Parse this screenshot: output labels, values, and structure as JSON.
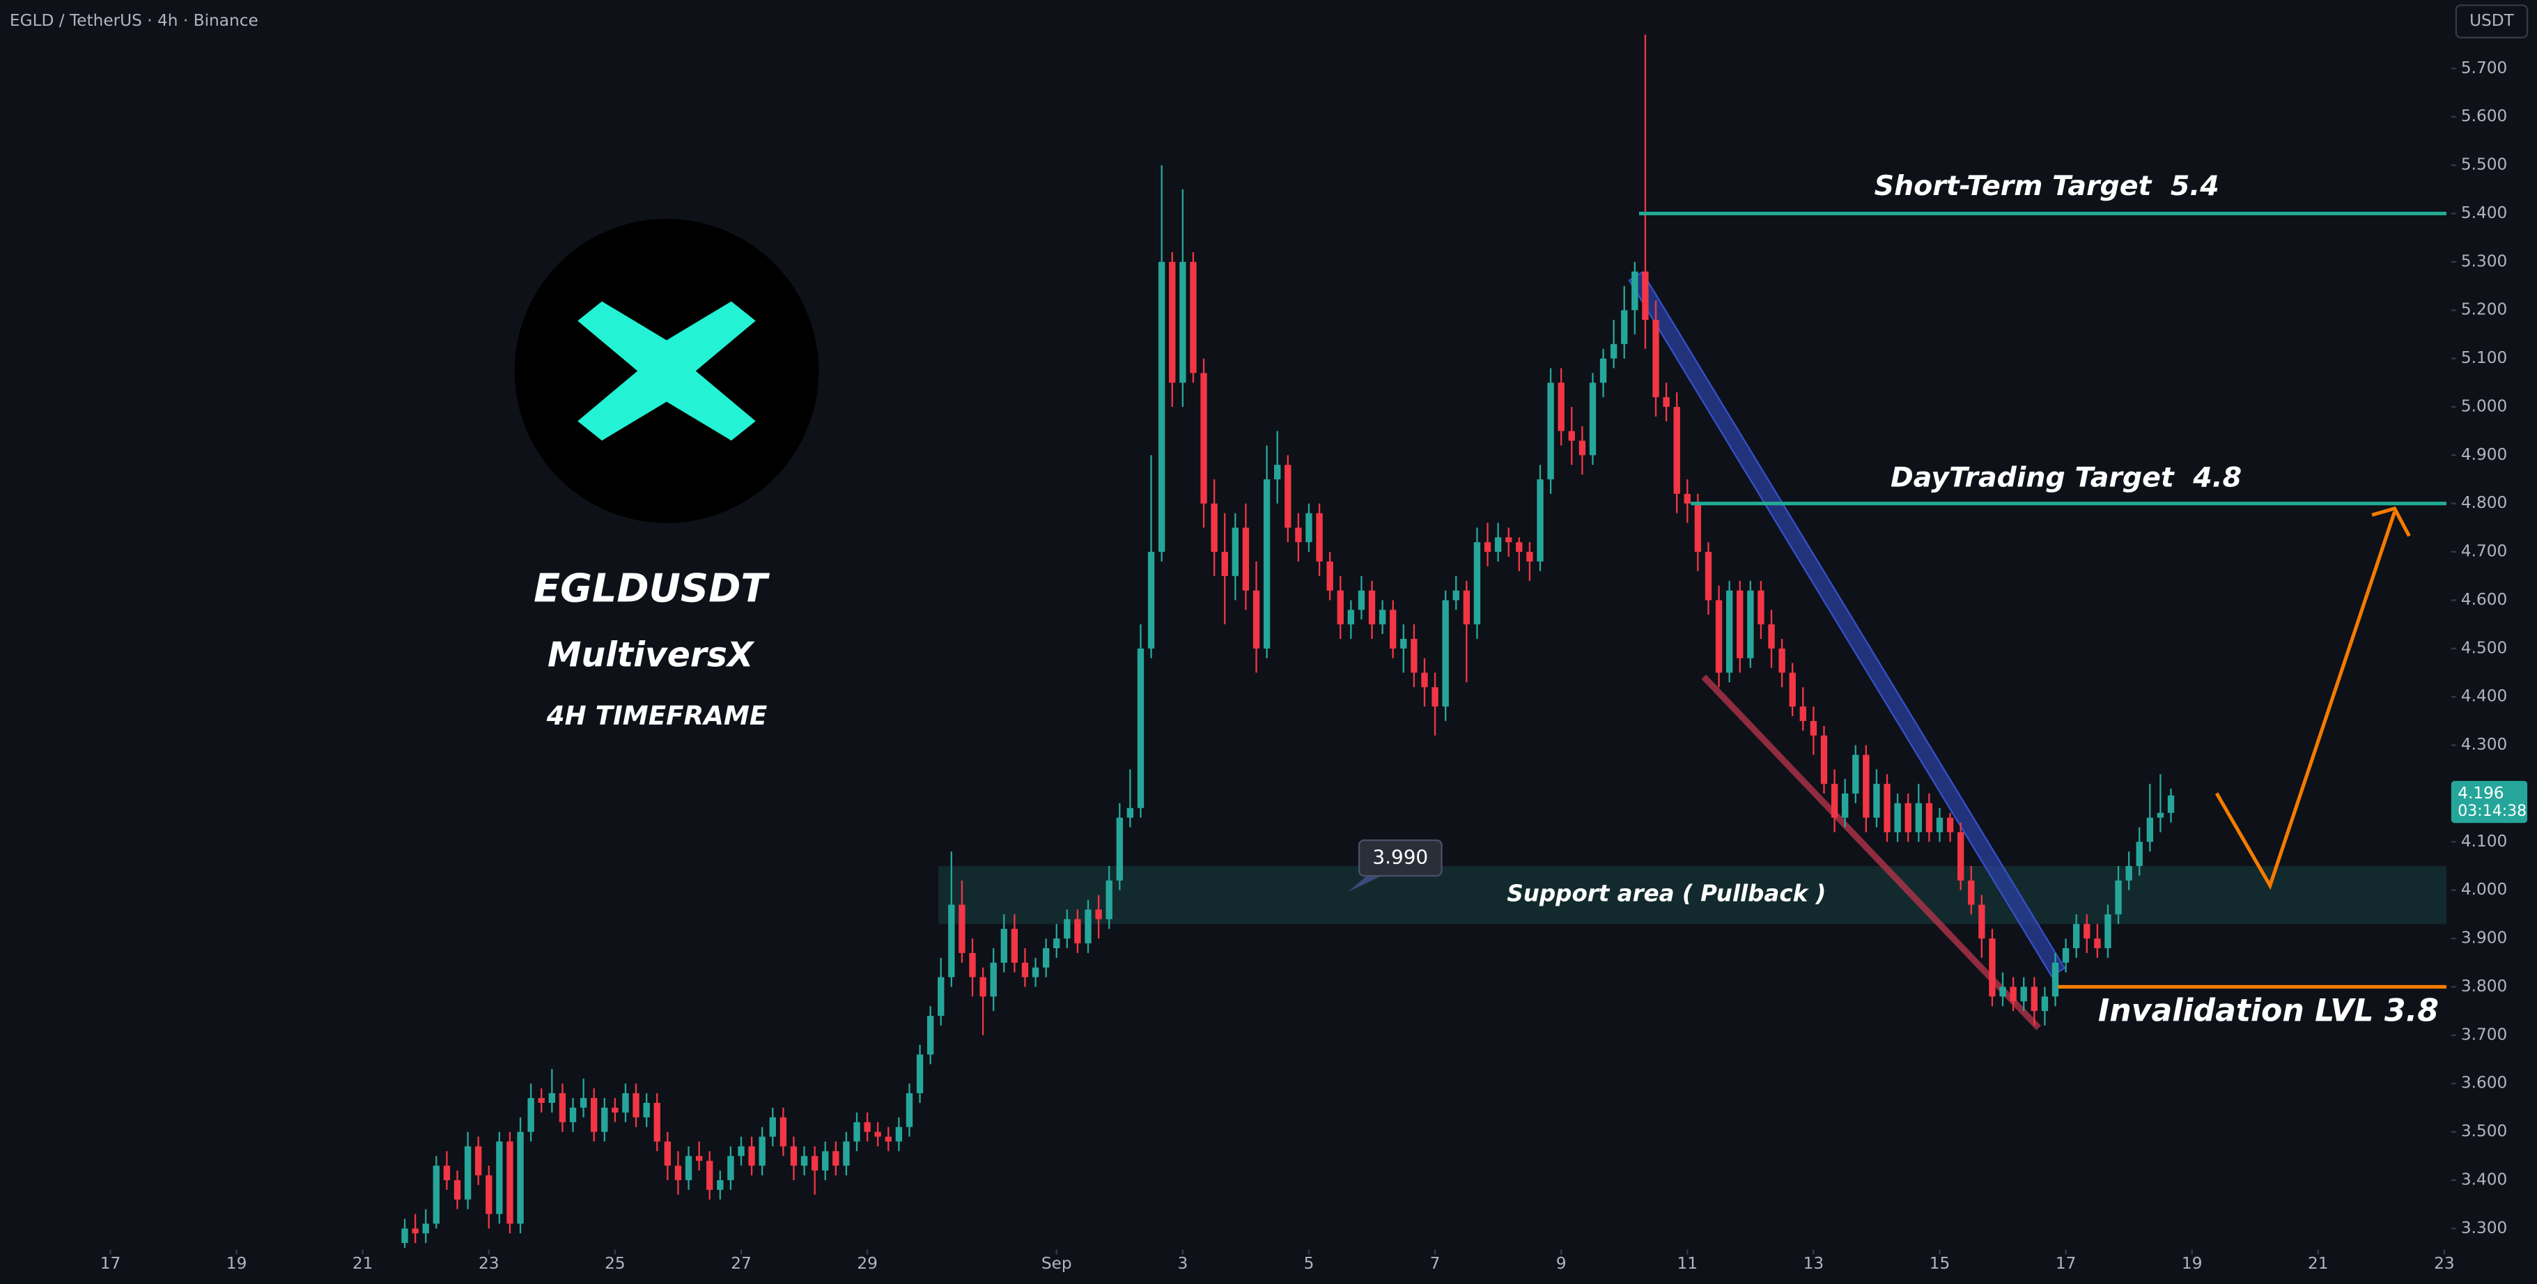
{
  "chart_data": {
    "type": "candlestick",
    "title": "EGLD / TetherUS · 4h · Binance",
    "currency": "USDT",
    "up_color": "#26a69a",
    "down_color": "#f23645",
    "grid": false,
    "open": [
      3.27,
      3.3,
      3.29,
      3.31,
      3.43,
      3.4,
      3.36,
      3.47,
      3.41,
      3.33,
      3.48,
      3.31,
      3.5,
      3.57,
      3.56,
      3.58,
      3.52,
      3.55,
      3.57,
      3.5,
      3.55,
      3.54,
      3.58,
      3.53,
      3.56,
      3.48,
      3.43,
      3.4,
      3.45,
      3.44,
      3.38,
      3.4,
      3.45,
      3.47,
      3.43,
      3.49,
      3.53,
      3.47,
      3.43,
      3.45,
      3.42,
      3.46,
      3.43,
      3.48,
      3.52,
      3.5,
      3.49,
      3.48,
      3.51,
      3.58,
      3.66,
      3.74,
      3.82,
      3.97,
      3.87,
      3.82,
      3.78,
      3.85,
      3.92,
      3.85,
      3.82,
      3.84,
      3.88,
      3.9,
      3.94,
      3.89,
      3.96,
      3.94,
      4.02,
      4.15,
      4.17,
      4.5,
      4.7,
      5.3,
      5.05,
      5.3,
      5.07,
      4.8,
      4.7,
      4.65,
      4.75,
      4.62,
      4.5,
      4.85,
      4.88,
      4.75,
      4.72,
      4.78,
      4.68,
      4.62,
      4.55,
      4.58,
      4.62,
      4.55,
      4.58,
      4.5,
      4.52,
      4.45,
      4.42,
      4.38,
      4.6,
      4.62,
      4.55,
      4.72,
      4.7,
      4.73,
      4.72,
      4.7,
      4.68,
      4.85,
      5.05,
      4.95,
      4.93,
      4.9,
      5.05,
      5.1,
      5.13,
      5.2,
      5.28,
      5.18,
      5.02,
      5.0,
      4.82,
      4.8,
      4.7,
      4.6,
      4.45,
      4.62,
      4.48,
      4.62,
      4.55,
      4.5,
      4.45,
      4.38,
      4.35,
      4.32,
      4.22,
      4.15,
      4.2,
      4.28,
      4.15,
      4.22,
      4.12,
      4.18,
      4.12,
      4.18,
      4.12,
      4.15,
      4.12,
      4.02,
      3.97,
      3.9,
      3.78,
      3.8,
      3.77,
      3.8,
      3.75,
      3.78,
      3.85,
      3.88,
      3.93,
      3.9,
      3.88,
      3.95,
      4.02,
      4.05,
      4.1,
      4.15,
      4.16
    ],
    "high": [
      3.32,
      3.33,
      3.34,
      3.45,
      3.46,
      3.42,
      3.5,
      3.49,
      3.43,
      3.5,
      3.5,
      3.53,
      3.6,
      3.59,
      3.63,
      3.6,
      3.57,
      3.61,
      3.59,
      3.57,
      3.57,
      3.6,
      3.6,
      3.58,
      3.58,
      3.5,
      3.46,
      3.47,
      3.48,
      3.46,
      3.42,
      3.47,
      3.49,
      3.49,
      3.51,
      3.55,
      3.55,
      3.49,
      3.47,
      3.47,
      3.48,
      3.48,
      3.5,
      3.54,
      3.54,
      3.52,
      3.51,
      3.53,
      3.6,
      3.68,
      3.76,
      3.86,
      4.08,
      4.02,
      3.9,
      3.84,
      3.88,
      3.95,
      3.95,
      3.88,
      3.86,
      3.9,
      3.93,
      3.96,
      3.96,
      3.98,
      3.99,
      4.05,
      4.18,
      4.25,
      4.55,
      4.9,
      5.5,
      5.32,
      5.45,
      5.32,
      5.1,
      4.85,
      4.78,
      4.78,
      4.8,
      4.68,
      4.92,
      4.95,
      4.9,
      4.78,
      4.8,
      4.8,
      4.7,
      4.65,
      4.6,
      4.65,
      4.64,
      4.6,
      4.6,
      4.55,
      4.55,
      4.48,
      4.45,
      4.62,
      4.65,
      4.64,
      4.75,
      4.76,
      4.76,
      4.75,
      4.73,
      4.72,
      4.88,
      5.08,
      5.08,
      5.0,
      4.96,
      5.07,
      5.12,
      5.18,
      5.25,
      5.3,
      5.77,
      5.22,
      5.05,
      5.03,
      4.85,
      4.82,
      4.72,
      4.63,
      4.64,
      4.64,
      4.64,
      4.64,
      4.58,
      4.52,
      4.47,
      4.42,
      4.38,
      4.34,
      4.25,
      4.23,
      4.3,
      4.3,
      4.25,
      4.24,
      4.2,
      4.2,
      4.22,
      4.2,
      4.17,
      4.16,
      4.14,
      4.05,
      3.99,
      3.92,
      3.83,
      3.82,
      3.82,
      3.82,
      3.8,
      3.87,
      3.9,
      3.95,
      3.95,
      3.93,
      3.97,
      4.05,
      4.08,
      4.13,
      4.22,
      4.24,
      4.21
    ],
    "low": [
      3.26,
      3.27,
      3.27,
      3.3,
      3.38,
      3.34,
      3.34,
      3.39,
      3.3,
      3.31,
      3.29,
      3.29,
      3.48,
      3.54,
      3.54,
      3.5,
      3.5,
      3.53,
      3.48,
      3.48,
      3.52,
      3.52,
      3.51,
      3.51,
      3.46,
      3.4,
      3.37,
      3.38,
      3.42,
      3.36,
      3.36,
      3.38,
      3.43,
      3.41,
      3.41,
      3.47,
      3.45,
      3.4,
      3.41,
      3.37,
      3.4,
      3.41,
      3.41,
      3.46,
      3.48,
      3.47,
      3.46,
      3.46,
      3.49,
      3.56,
      3.64,
      3.72,
      3.8,
      3.85,
      3.78,
      3.7,
      3.75,
      3.83,
      3.83,
      3.8,
      3.8,
      3.82,
      3.86,
      3.88,
      3.87,
      3.87,
      3.9,
      3.92,
      4.0,
      4.13,
      4.15,
      4.48,
      4.68,
      5.0,
      5.0,
      5.05,
      4.75,
      4.65,
      4.55,
      4.6,
      4.58,
      4.45,
      4.48,
      4.8,
      4.72,
      4.68,
      4.7,
      4.65,
      4.6,
      4.52,
      4.52,
      4.56,
      4.52,
      4.53,
      4.48,
      4.45,
      4.42,
      4.38,
      4.32,
      4.35,
      4.58,
      4.43,
      4.52,
      4.67,
      4.68,
      4.69,
      4.66,
      4.64,
      4.66,
      4.82,
      4.92,
      4.88,
      4.86,
      4.88,
      5.02,
      5.08,
      5.1,
      5.15,
      5.12,
      4.98,
      4.97,
      4.78,
      4.76,
      4.66,
      4.57,
      4.42,
      4.43,
      4.45,
      4.46,
      4.52,
      4.46,
      4.42,
      4.36,
      4.33,
      4.28,
      4.2,
      4.12,
      4.13,
      4.18,
      4.12,
      4.13,
      4.1,
      4.1,
      4.1,
      4.1,
      4.1,
      4.1,
      4.1,
      4.0,
      3.95,
      3.86,
      3.76,
      3.76,
      3.75,
      3.75,
      3.72,
      3.72,
      3.76,
      3.83,
      3.86,
      3.87,
      3.86,
      3.86,
      3.93,
      4.0,
      4.03,
      4.08,
      4.12,
      4.14
    ],
    "close": [
      3.3,
      3.29,
      3.31,
      3.43,
      3.4,
      3.36,
      3.47,
      3.41,
      3.33,
      3.48,
      3.31,
      3.5,
      3.57,
      3.56,
      3.58,
      3.52,
      3.55,
      3.57,
      3.5,
      3.55,
      3.54,
      3.58,
      3.53,
      3.56,
      3.48,
      3.43,
      3.4,
      3.45,
      3.44,
      3.38,
      3.4,
      3.45,
      3.47,
      3.43,
      3.49,
      3.53,
      3.47,
      3.43,
      3.45,
      3.42,
      3.46,
      3.43,
      3.48,
      3.52,
      3.5,
      3.49,
      3.48,
      3.51,
      3.58,
      3.66,
      3.74,
      3.82,
      3.97,
      3.87,
      3.82,
      3.78,
      3.85,
      3.92,
      3.85,
      3.82,
      3.84,
      3.88,
      3.9,
      3.94,
      3.89,
      3.96,
      3.94,
      4.02,
      4.15,
      4.17,
      4.5,
      4.7,
      5.3,
      5.05,
      5.3,
      5.07,
      4.8,
      4.7,
      4.65,
      4.75,
      4.62,
      4.5,
      4.85,
      4.88,
      4.75,
      4.72,
      4.78,
      4.68,
      4.62,
      4.55,
      4.58,
      4.62,
      4.55,
      4.58,
      4.5,
      4.52,
      4.45,
      4.42,
      4.38,
      4.6,
      4.62,
      4.55,
      4.72,
      4.7,
      4.73,
      4.72,
      4.7,
      4.68,
      4.85,
      5.05,
      4.95,
      4.93,
      4.9,
      5.05,
      5.1,
      5.13,
      5.2,
      5.28,
      5.18,
      5.02,
      5.0,
      4.82,
      4.8,
      4.7,
      4.6,
      4.45,
      4.62,
      4.48,
      4.62,
      4.55,
      4.5,
      4.45,
      4.38,
      4.35,
      4.32,
      4.22,
      4.15,
      4.2,
      4.28,
      4.15,
      4.22,
      4.12,
      4.18,
      4.12,
      4.18,
      4.12,
      4.15,
      4.12,
      4.02,
      3.97,
      3.9,
      3.78,
      3.8,
      3.77,
      3.8,
      3.75,
      3.78,
      3.85,
      3.88,
      3.93,
      3.9,
      3.88,
      3.95,
      4.02,
      4.05,
      4.1,
      4.15,
      4.16,
      4.196
    ],
    "xlim": [
      -38.5,
      194.2
    ],
    "xticks": [
      {
        "value": -28,
        "label": "17"
      },
      {
        "value": -16,
        "label": "19"
      },
      {
        "value": -4,
        "label": "21"
      },
      {
        "value": 8,
        "label": "23"
      },
      {
        "value": 20,
        "label": "25"
      },
      {
        "value": 32,
        "label": "27"
      },
      {
        "value": 44,
        "label": "29"
      },
      {
        "value": 62,
        "label": "Sep"
      },
      {
        "value": 74,
        "label": "3"
      },
      {
        "value": 86,
        "label": "5"
      },
      {
        "value": 98,
        "label": "7"
      },
      {
        "value": 110,
        "label": "9"
      },
      {
        "value": 122,
        "label": "11"
      },
      {
        "value": 134,
        "label": "13"
      },
      {
        "value": 146,
        "label": "15"
      },
      {
        "value": 158,
        "label": "17"
      },
      {
        "value": 170,
        "label": "19"
      },
      {
        "value": 182,
        "label": "21"
      },
      {
        "value": 194,
        "label": "23"
      }
    ],
    "ylim": [
      3.263,
      5.841
    ],
    "yticks": [
      {
        "value": 3.3,
        "label": "3.300"
      },
      {
        "value": 3.4,
        "label": "3.400"
      },
      {
        "value": 3.5,
        "label": "3.500"
      },
      {
        "value": 3.6,
        "label": "3.600"
      },
      {
        "value": 3.7,
        "label": "3.700"
      },
      {
        "value": 3.8,
        "label": "3.800"
      },
      {
        "value": 3.9,
        "label": "3.900"
      },
      {
        "value": 4.0,
        "label": "4.000"
      },
      {
        "value": 4.1,
        "label": "4.100"
      },
      {
        "value": 4.2,
        "label": "4.200"
      },
      {
        "value": 4.3,
        "label": "4.300"
      },
      {
        "value": 4.4,
        "label": "4.400"
      },
      {
        "value": 4.5,
        "label": "4.500"
      },
      {
        "value": 4.6,
        "label": "4.600"
      },
      {
        "value": 4.7,
        "label": "4.700"
      },
      {
        "value": 4.8,
        "label": "4.800"
      },
      {
        "value": 4.9,
        "label": "4.900"
      },
      {
        "value": 5.0,
        "label": "5.000"
      },
      {
        "value": 5.1,
        "label": "5.100"
      },
      {
        "value": 5.2,
        "label": "5.200"
      },
      {
        "value": 5.3,
        "label": "5.300"
      },
      {
        "value": 5.4,
        "label": "5.400"
      },
      {
        "value": 5.5,
        "label": "5.500"
      },
      {
        "value": 5.6,
        "label": "5.600"
      },
      {
        "value": 5.7,
        "label": "5.700"
      }
    ],
    "countdown": "03:14:38",
    "levels": [
      {
        "text": "Short-Term Target  5.4",
        "level": 5.4,
        "color": "#22ab94"
      },
      {
        "text": "DayTrading Target  4.8",
        "level": 4.8,
        "color": "#22ab94"
      },
      {
        "text": "Invalidation LVL 3.8",
        "level": 3.8,
        "color": "#f57c00"
      }
    ],
    "zone": {
      "text": "Support area ( Pullback )",
      "range": [
        3.93,
        4.05
      ]
    },
    "callout": "3.990",
    "labels": {
      "symbol": "EGLDUSDT",
      "name": "MultiversX",
      "timeframe": "4H TIMEFRAME"
    }
  }
}
